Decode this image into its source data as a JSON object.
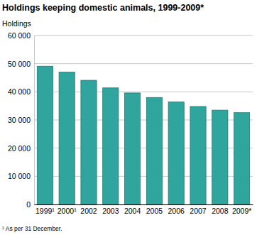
{
  "chart_data": {
    "type": "bar",
    "title": "Holdings keeping domestic animals, 1999-2009*",
    "y_label": "Holdings",
    "footnote": "¹ As per 31 December.",
    "categories": [
      "1999¹",
      "2000¹",
      "2002",
      "2003",
      "2004",
      "2005",
      "2006",
      "2007",
      "2008",
      "2009*"
    ],
    "values": [
      49100,
      47000,
      44100,
      41400,
      39600,
      38000,
      36400,
      34800,
      33500,
      32600
    ],
    "color": "#2fa59e",
    "ylim": [
      0,
      60000
    ],
    "yticks": [
      0,
      {
        "value": 10000,
        "label": "10 000"
      },
      {
        "value": 20000,
        "label": "20 000"
      },
      {
        "value": 30000,
        "label": "30 000"
      },
      {
        "value": 40000,
        "label": "40 000"
      },
      {
        "value": 50000,
        "label": "50 000"
      },
      {
        "value": 60000,
        "label": "60 000"
      }
    ],
    "grid": true
  }
}
